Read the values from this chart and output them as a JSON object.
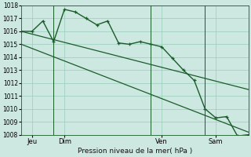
{
  "background_color": "#cce8e0",
  "grid_color": "#99ccbb",
  "line_color": "#1a5c2a",
  "title": "Pression niveau de la mer( hPa )",
  "ylim": [
    1008,
    1018
  ],
  "yticks": [
    1008,
    1009,
    1010,
    1011,
    1012,
    1013,
    1014,
    1015,
    1016,
    1017,
    1018
  ],
  "xlim": [
    0,
    84
  ],
  "xtick_positions": [
    4,
    16,
    52,
    72
  ],
  "xtick_labels": [
    "Jeu",
    "Dim",
    "Ven",
    "Sam"
  ],
  "vlines": [
    12,
    48,
    68
  ],
  "series": [
    {
      "x": [
        0,
        84
      ],
      "y": [
        1016.0,
        1011.5
      ],
      "has_markers": false,
      "lw": 0.9
    },
    {
      "x": [
        0,
        84
      ],
      "y": [
        1015.0,
        1008.2
      ],
      "has_markers": false,
      "lw": 0.9
    },
    {
      "x": [
        0,
        4,
        8,
        12,
        16,
        20,
        24,
        28,
        32,
        36,
        40,
        44,
        48,
        52,
        56,
        60,
        64,
        68,
        72,
        76,
        80,
        84
      ],
      "y": [
        1016.0,
        1016.0,
        1016.8,
        1015.2,
        1017.7,
        1017.5,
        1017.0,
        1016.5,
        1016.8,
        1015.1,
        1015.0,
        1015.2,
        1015.0,
        1014.8,
        1013.9,
        1013.0,
        1012.2,
        1010.0,
        1009.3,
        1009.4,
        1007.9,
        1008.0
      ],
      "has_markers": true,
      "lw": 1.0
    }
  ]
}
